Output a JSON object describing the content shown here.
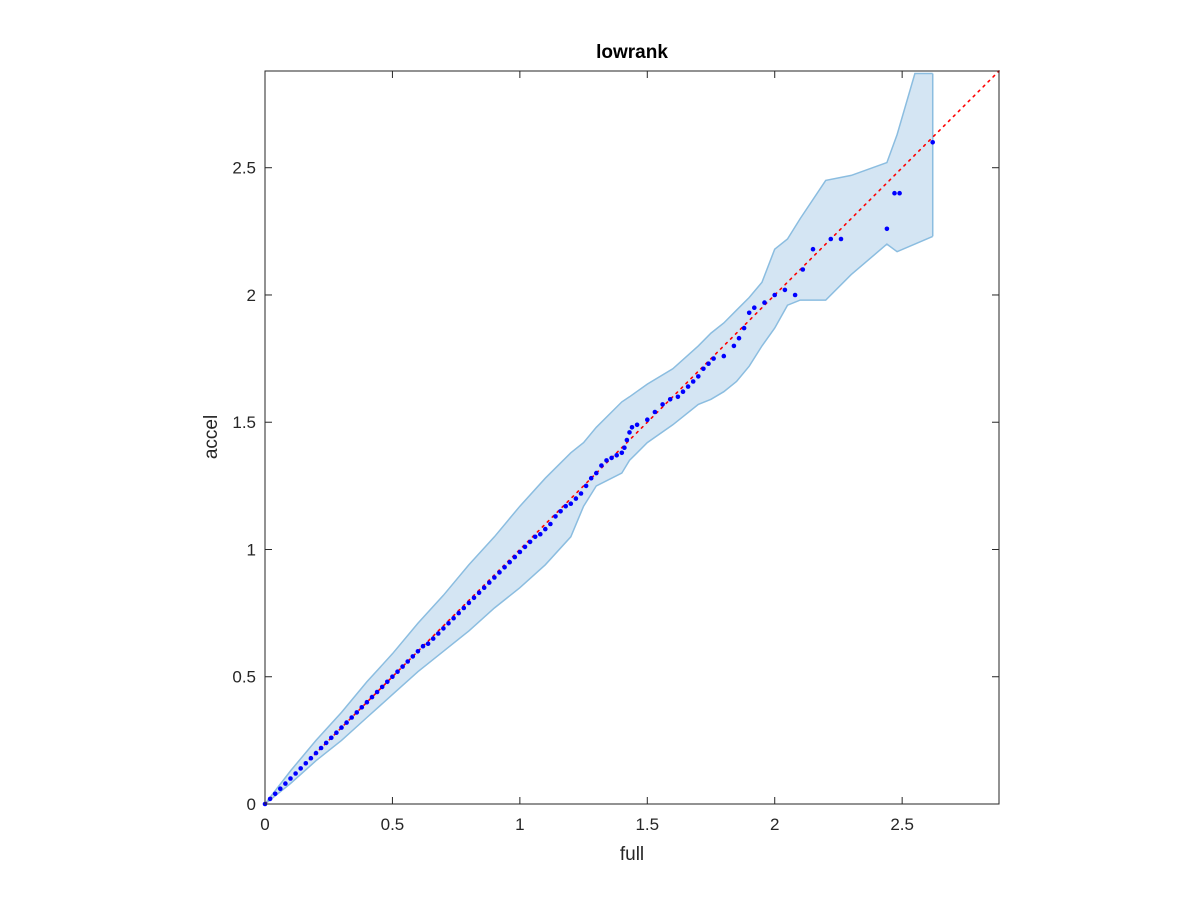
{
  "chart_data": {
    "type": "scatter",
    "title": "lowrank",
    "xlabel": "full",
    "ylabel": "accel",
    "xlim": [
      0,
      2.88
    ],
    "ylim": [
      0,
      2.88
    ],
    "xticks": [
      0,
      0.5,
      1,
      1.5,
      2,
      2.5
    ],
    "xtick_labels": [
      "0",
      "0.5",
      "1",
      "1.5",
      "2",
      "2.5"
    ],
    "yticks": [
      0,
      0.5,
      1,
      1.5,
      2,
      2.5
    ],
    "ytick_labels": [
      "0",
      "0.5",
      "1",
      "1.5",
      "2",
      "2.5"
    ],
    "grid": false,
    "colors": {
      "points": "#0000ff",
      "reference_line": "#ff0000",
      "band_fill": "#d4e5f3",
      "band_edge": "#8bbde0",
      "axes": "#262626"
    },
    "reference_line": {
      "style": "dotted",
      "x": [
        0,
        2.88
      ],
      "y": [
        0,
        2.88
      ]
    },
    "band": {
      "x": [
        0,
        0.1,
        0.2,
        0.3,
        0.4,
        0.5,
        0.6,
        0.7,
        0.8,
        0.9,
        1.0,
        1.1,
        1.2,
        1.25,
        1.3,
        1.4,
        1.43,
        1.5,
        1.6,
        1.7,
        1.75,
        1.8,
        1.85,
        1.9,
        1.95,
        2.0,
        2.05,
        2.1,
        2.2,
        2.3,
        2.44,
        2.48,
        2.55,
        2.62
      ],
      "upper": [
        0,
        0.13,
        0.25,
        0.36,
        0.48,
        0.59,
        0.71,
        0.82,
        0.94,
        1.05,
        1.17,
        1.28,
        1.38,
        1.42,
        1.48,
        1.58,
        1.6,
        1.65,
        1.71,
        1.8,
        1.85,
        1.89,
        1.94,
        1.99,
        2.05,
        2.18,
        2.22,
        2.3,
        2.45,
        2.47,
        2.52,
        2.63,
        2.87,
        2.87
      ],
      "lower": [
        0,
        0.08,
        0.17,
        0.25,
        0.34,
        0.43,
        0.52,
        0.6,
        0.68,
        0.77,
        0.85,
        0.94,
        1.05,
        1.17,
        1.25,
        1.3,
        1.35,
        1.42,
        1.49,
        1.57,
        1.59,
        1.62,
        1.66,
        1.72,
        1.8,
        1.87,
        1.96,
        1.98,
        1.98,
        2.08,
        2.2,
        2.17,
        2.2,
        2.23
      ]
    },
    "series": [
      {
        "x": [
          0.0,
          0.02,
          0.04,
          0.06,
          0.08,
          0.1,
          0.12,
          0.14,
          0.16,
          0.18,
          0.2,
          0.22,
          0.24,
          0.26,
          0.28,
          0.3,
          0.32,
          0.34,
          0.36,
          0.38,
          0.4,
          0.42,
          0.44,
          0.46,
          0.48,
          0.5,
          0.52,
          0.54,
          0.56,
          0.58,
          0.6,
          0.62,
          0.64,
          0.66,
          0.68,
          0.7,
          0.72,
          0.74,
          0.76,
          0.78,
          0.8,
          0.82,
          0.84,
          0.86,
          0.88,
          0.9,
          0.92,
          0.94,
          0.96,
          0.98,
          1.0,
          1.02,
          1.04,
          1.06,
          1.08,
          1.1,
          1.12,
          1.14,
          1.16,
          1.18,
          1.2,
          1.22,
          1.24,
          1.26,
          1.28,
          1.3,
          1.32,
          1.34,
          1.36,
          1.38,
          1.4,
          1.41,
          1.42,
          1.43,
          1.44,
          1.46,
          1.5,
          1.53,
          1.56,
          1.59,
          1.62,
          1.64,
          1.66,
          1.68,
          1.7,
          1.72,
          1.74,
          1.76,
          1.8,
          1.84,
          1.86,
          1.88,
          1.9,
          1.92,
          1.96,
          2.0,
          2.04,
          2.08,
          2.11,
          2.15,
          2.22,
          2.26,
          2.44,
          2.47,
          2.49,
          2.62
        ],
        "y": [
          0.0,
          0.02,
          0.04,
          0.06,
          0.08,
          0.1,
          0.12,
          0.14,
          0.16,
          0.18,
          0.2,
          0.22,
          0.24,
          0.26,
          0.28,
          0.3,
          0.32,
          0.34,
          0.36,
          0.38,
          0.4,
          0.42,
          0.44,
          0.46,
          0.48,
          0.5,
          0.52,
          0.54,
          0.56,
          0.58,
          0.6,
          0.62,
          0.63,
          0.65,
          0.67,
          0.69,
          0.71,
          0.73,
          0.75,
          0.77,
          0.79,
          0.81,
          0.83,
          0.85,
          0.87,
          0.89,
          0.91,
          0.93,
          0.95,
          0.97,
          0.99,
          1.01,
          1.03,
          1.05,
          1.06,
          1.08,
          1.1,
          1.13,
          1.15,
          1.17,
          1.18,
          1.2,
          1.22,
          1.25,
          1.28,
          1.3,
          1.33,
          1.35,
          1.36,
          1.37,
          1.38,
          1.4,
          1.43,
          1.46,
          1.48,
          1.49,
          1.51,
          1.54,
          1.57,
          1.59,
          1.6,
          1.62,
          1.64,
          1.66,
          1.68,
          1.71,
          1.73,
          1.75,
          1.76,
          1.8,
          1.83,
          1.87,
          1.93,
          1.95,
          1.97,
          2.0,
          2.02,
          2.0,
          2.1,
          2.18,
          2.22,
          2.22,
          2.26,
          2.4,
          2.4,
          2.6
        ]
      }
    ]
  }
}
